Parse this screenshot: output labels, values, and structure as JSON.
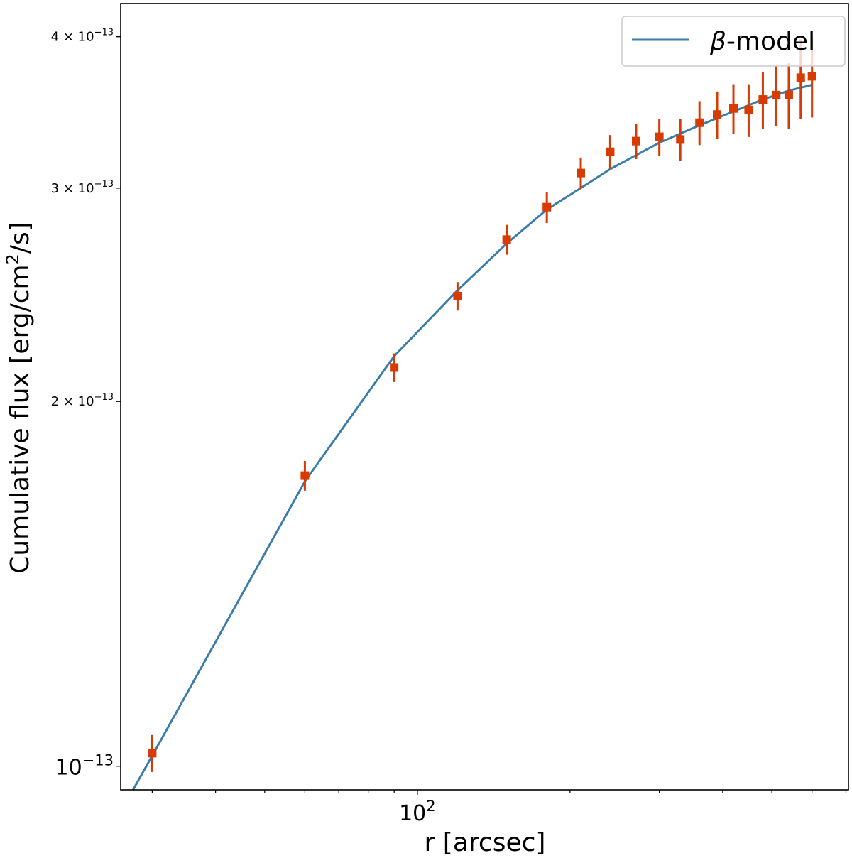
{
  "chart_data": {
    "type": "scatter",
    "title": "",
    "xlabel": "r [arcsec]",
    "ylabel_main": "Cumulative flux [erg/cm",
    "ylabel_sup": "2",
    "ylabel_tail": "/s]",
    "xscale": "log",
    "yscale": "log",
    "xlim": [
      26,
      708
    ],
    "ylim": [
      9.56e-14,
      4.26e-13
    ],
    "x_ticks": [
      {
        "value": 100,
        "base": "10",
        "exp": "2"
      }
    ],
    "x_minor_ticks": [
      30,
      40,
      50,
      60,
      70,
      80,
      90,
      200,
      300,
      400,
      500,
      600,
      700
    ],
    "y_ticks": [
      {
        "value": 1e-13,
        "mant": "",
        "base": "10",
        "exp": "−13",
        "size": "large"
      },
      {
        "value": 2e-13,
        "mant": "2 × ",
        "base": "10",
        "exp": "−13",
        "size": "small"
      },
      {
        "value": 3e-13,
        "mant": "3 × ",
        "base": "10",
        "exp": "−13",
        "size": "small"
      },
      {
        "value": 4e-13,
        "mant": "4 × ",
        "base": "10",
        "exp": "−13",
        "size": "small"
      }
    ],
    "legend": {
      "position": "upper-right",
      "entries": [
        {
          "label_greek": "β",
          "label": "-model"
        }
      ]
    },
    "colors": {
      "data": "#d83b01",
      "model": "#3a7dab"
    },
    "series": [
      {
        "name": "data",
        "kind": "errorbar",
        "x": [
          30,
          60,
          90,
          120,
          150,
          180,
          210,
          240,
          270,
          300,
          330,
          360,
          390,
          420,
          450,
          480,
          510,
          540,
          570,
          600
        ],
        "y": [
          1.025e-13,
          1.737e-13,
          2.133e-13,
          2.443e-13,
          2.72e-13,
          2.893e-13,
          3.087e-13,
          3.214e-13,
          3.28e-13,
          3.307e-13,
          3.29e-13,
          3.397e-13,
          3.45e-13,
          3.49e-13,
          3.48e-13,
          3.55e-13,
          3.58e-13,
          3.58e-13,
          3.7e-13,
          3.71e-13
        ],
        "yerr": [
          3.6e-15,
          4.9e-15,
          5.8e-15,
          6.6e-15,
          7.7e-15,
          8.6e-15,
          9.2e-15,
          1.04e-14,
          1.1e-14,
          1.16e-14,
          1.33e-14,
          1.42e-14,
          1.54e-14,
          1.65e-14,
          1.74e-14,
          1.92e-14,
          2.08e-14,
          2.22e-14,
          2.8e-14,
          2.8e-14
        ]
      },
      {
        "name": "β-model",
        "kind": "line",
        "x": [
          27.5,
          30,
          60,
          90,
          120,
          150,
          180,
          210,
          240,
          300,
          360,
          420,
          480,
          540,
          600
        ],
        "y": [
          9.56e-14,
          1.02e-13,
          1.718e-13,
          2.18e-13,
          2.47e-13,
          2.7e-13,
          2.88e-13,
          3e-13,
          3.11e-13,
          3.27e-13,
          3.38e-13,
          3.47e-13,
          3.55e-13,
          3.61e-13,
          3.65e-13
        ]
      }
    ]
  }
}
